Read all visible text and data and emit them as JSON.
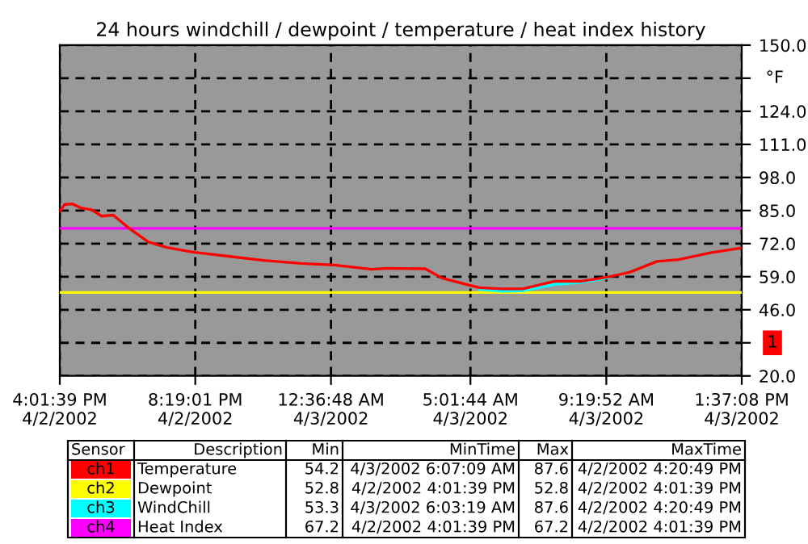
{
  "chart_data": {
    "type": "line",
    "title": "24 hours windchill / dewpoint / temperature / heat index history",
    "ylabel": "°F",
    "xlim": [
      "2002-04-02T16:01:39",
      "2002-04-03T13:37:08"
    ],
    "ylim": [
      20,
      150
    ],
    "xticks": [
      {
        "value": "2002-04-02T16:01:39",
        "label": "4:01:39 PM\n4/2/2002"
      },
      {
        "value": "2002-04-02T20:19:01",
        "label": "8:19:01 PM\n4/2/2002"
      },
      {
        "value": "2002-04-03T00:36:48",
        "label": "12:36:48 AM\n4/3/2002"
      },
      {
        "value": "2002-04-03T05:01:44",
        "label": "5:01:44 AM\n4/3/2002"
      },
      {
        "value": "2002-04-03T09:19:52",
        "label": "9:19:52 AM\n4/3/2002"
      },
      {
        "value": "2002-04-03T13:37:08",
        "label": "1:37:08 PM\n4/3/2002"
      }
    ],
    "yticks": [
      {
        "value": 20,
        "label": "20.0"
      },
      {
        "value": 33,
        "label": null
      },
      {
        "value": 46,
        "label": "46.0"
      },
      {
        "value": 59,
        "label": "59.0"
      },
      {
        "value": 72,
        "label": "72.0"
      },
      {
        "value": 85,
        "label": "85.0"
      },
      {
        "value": 98,
        "label": "98.0"
      },
      {
        "value": 111,
        "label": "111.0"
      },
      {
        "value": 124,
        "label": "124.0"
      },
      {
        "value": 137,
        "label": null
      },
      {
        "value": 150,
        "label": "150.0"
      }
    ],
    "grid": true,
    "line_style": "solid",
    "legend": "bottom",
    "series": [
      {
        "name": "Temperature",
        "color": "#ff0000",
        "x": [
          "2002-04-02T16:02",
          "2002-04-02T16:11",
          "2002-04-02T16:26",
          "2002-04-02T16:42",
          "2002-04-02T17:02",
          "2002-04-02T17:21",
          "2002-04-02T17:43",
          "2002-04-02T18:14",
          "2002-04-02T18:50",
          "2002-04-02T19:25",
          "2002-04-02T20:17",
          "2002-04-02T21:18",
          "2002-04-02T22:29",
          "2002-04-02T23:40",
          "2002-04-03T00:43",
          "2002-04-03T01:54",
          "2002-04-03T02:25",
          "2002-04-03T03:36",
          "2002-04-03T04:07",
          "2002-04-03T04:58",
          "2002-04-03T05:19",
          "2002-04-03T06:00",
          "2002-04-03T06:41",
          "2002-04-03T07:42",
          "2002-04-03T08:33",
          "2002-04-03T09:24",
          "2002-04-03T10:05",
          "2002-04-03T10:56",
          "2002-04-03T11:37",
          "2002-04-03T12:38",
          "2002-04-03T13:30",
          "2002-04-03T13:37"
        ],
        "values": [
          84.9,
          87.4,
          87.6,
          86.0,
          85.3,
          82.8,
          83.2,
          77.9,
          72.6,
          70.5,
          68.6,
          67.1,
          65.4,
          64.2,
          63.6,
          61.9,
          62.3,
          62.1,
          58.5,
          55.7,
          54.7,
          54.2,
          54.2,
          57.2,
          57.2,
          58.9,
          60.8,
          65.0,
          65.7,
          68.4,
          70.1,
          70.3
        ]
      },
      {
        "name": "Dewpoint",
        "color": "#ffff00",
        "x": [
          "2002-04-02T16:01:39",
          "2002-04-03T13:37:08"
        ],
        "values": [
          52.8,
          52.8
        ]
      },
      {
        "name": "WindChill",
        "color": "#00ffff",
        "x": [
          "2002-04-03T05:19",
          "2002-04-03T06:03",
          "2002-04-03T06:41",
          "2002-04-03T07:42",
          "2002-04-03T08:33",
          "2002-04-03T09:24"
        ],
        "values": [
          54.0,
          53.3,
          53.4,
          56.0,
          56.8,
          58.6
        ]
      },
      {
        "name": "Heat Index",
        "color": "#ff00ff",
        "x": [
          "2002-04-02T16:01:39",
          "2002-04-03T13:37:08"
        ],
        "values": [
          78,
          78
        ]
      }
    ],
    "annotations": [
      "Sensor",
      "Description",
      "Min",
      "MinTime",
      "Max",
      "MaxTime",
      "ch1",
      "54.2",
      "4/3/2002 6:07:09 AM",
      "87.6",
      "4/2/2002 4:20:49 PM",
      "ch2",
      "52.8",
      "4/2/2002 4:01:39 PM",
      "52.8",
      "4/2/2002 4:01:39 PM",
      "ch3",
      "53.3",
      "4/3/2002 6:03:19 AM",
      "87.6",
      "4/2/2002 4:20:49 PM",
      "ch4",
      "67.2",
      "4/2/2002 4:01:39 PM",
      "67.2",
      "4/2/2002 4:01:39 PM",
      "1"
    ]
  }
}
